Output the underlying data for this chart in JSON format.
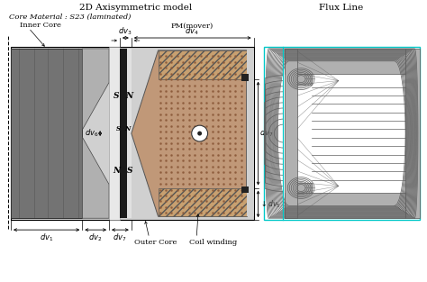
{
  "title": "2D Axisymmetric model",
  "title_right": "Flux Line",
  "subtitle": "Core Material : S23 (laminated)",
  "bg_color": "#ffffff",
  "colors": {
    "light_gray": "#d0d0d0",
    "mid_gray": "#b0b0b0",
    "dark_gray": "#606060",
    "very_dark": "#222222",
    "white_gap": "#f0f0f0",
    "pm_brown": "#c09878",
    "pm_dot": "#8b5a3a",
    "coil_hatch": "#c8a070",
    "cyan": "#00c8c8",
    "flux_line": "#606060",
    "outer_core_bg": "#c8c8c8"
  }
}
